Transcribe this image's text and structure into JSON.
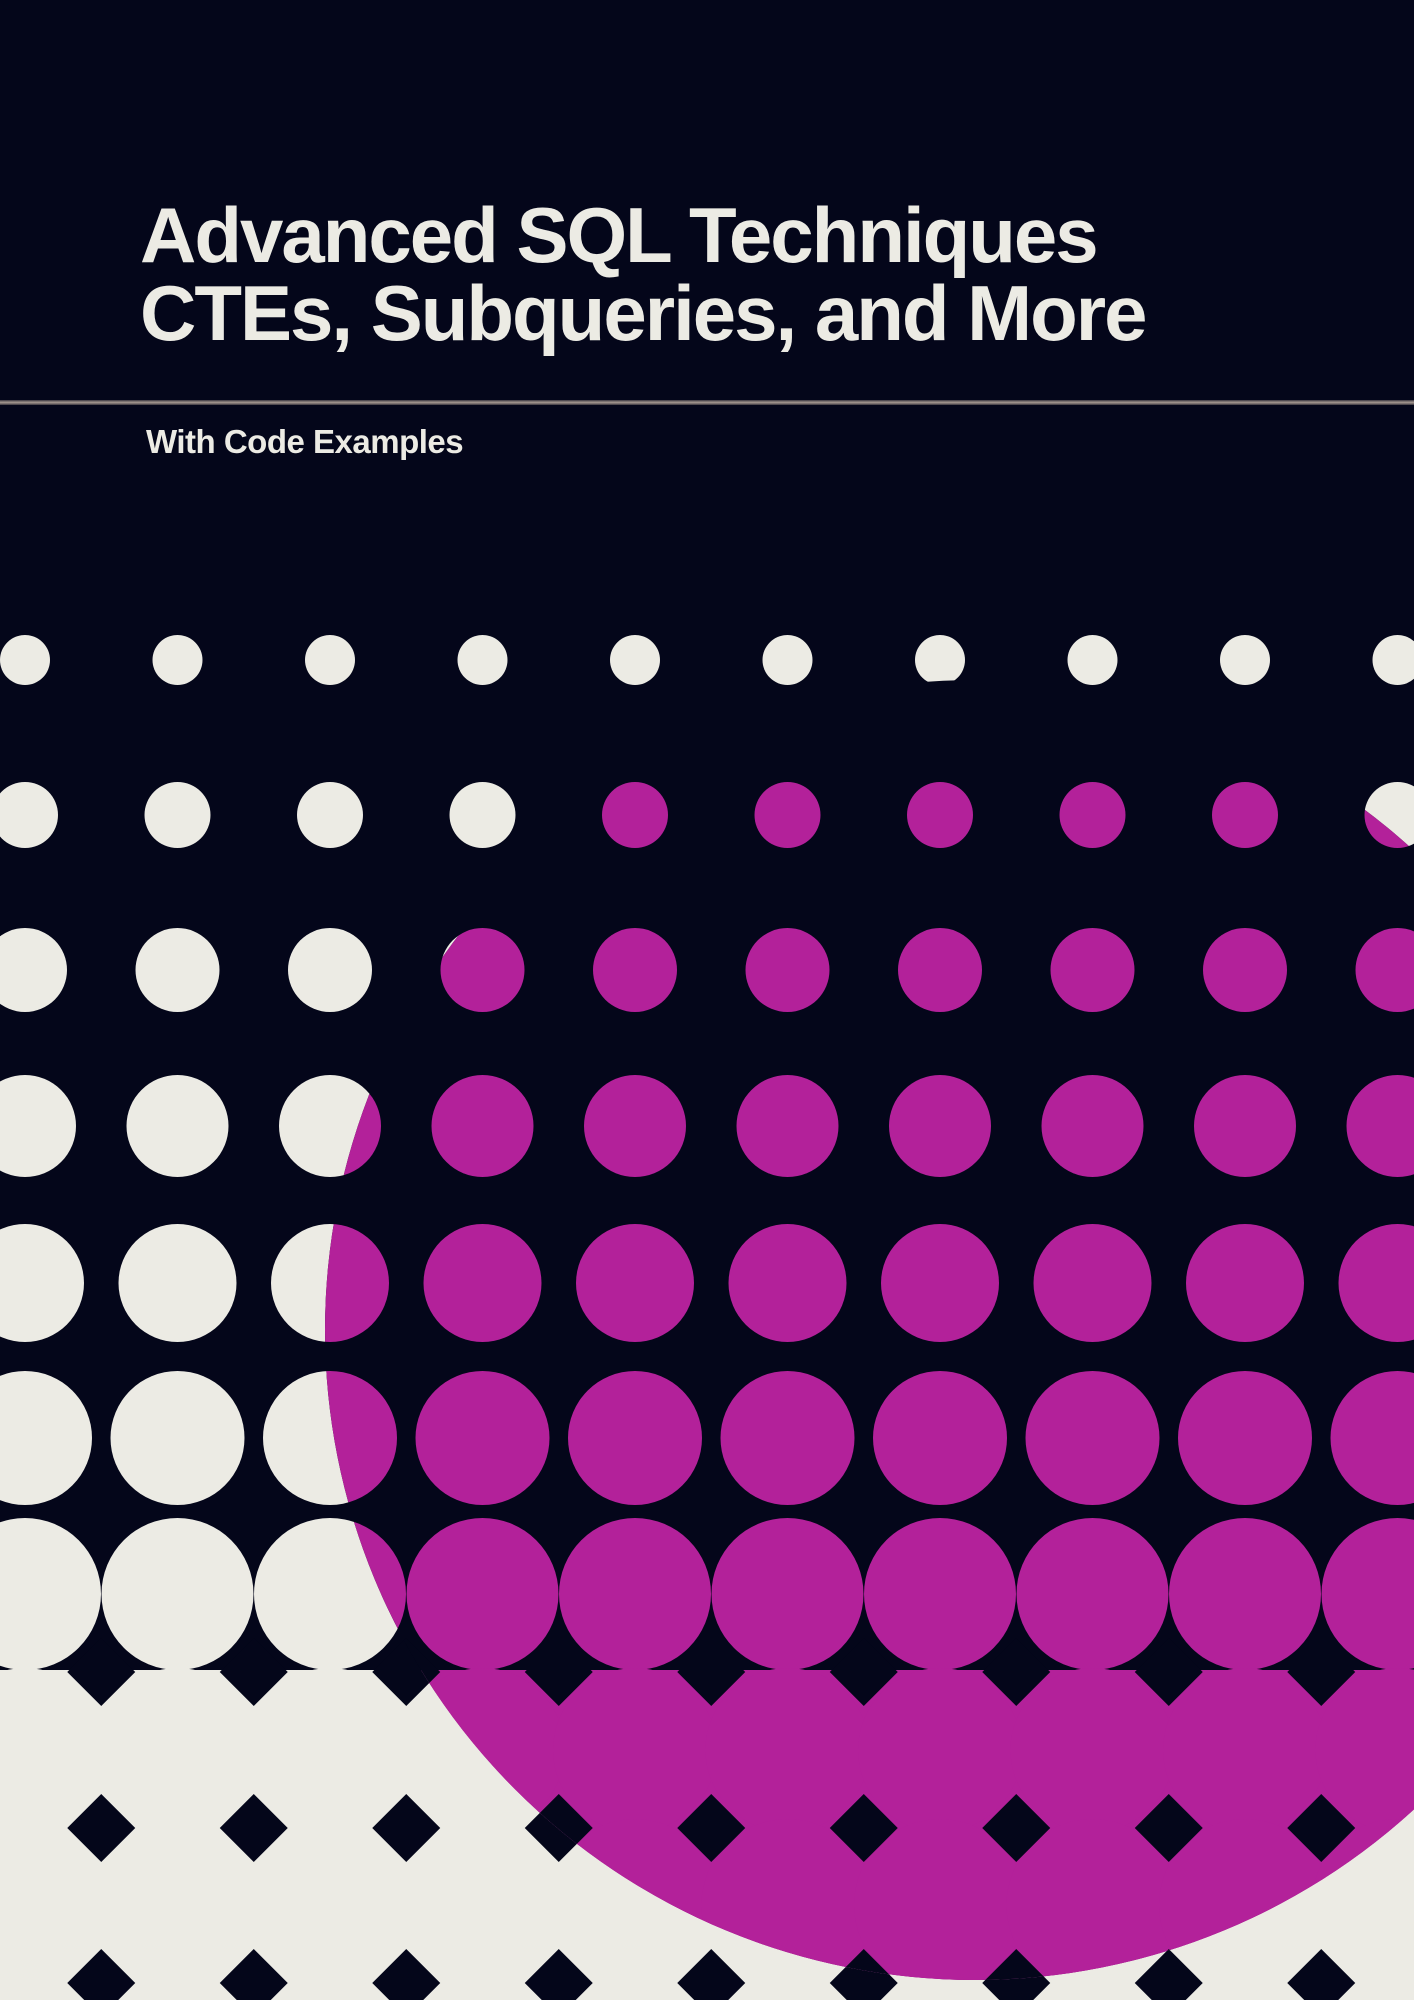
{
  "cover": {
    "title_line1": "Advanced SQL Techniques",
    "title_line2": "CTEs, Subqueries, and More",
    "subtitle": "With Code Examples"
  },
  "colors": {
    "background": "#04061a",
    "cream": "#ecebe4",
    "magenta": "#b3219a"
  },
  "artwork": {
    "name": "halftone-dot-pattern-with-large-magenta-circle"
  }
}
